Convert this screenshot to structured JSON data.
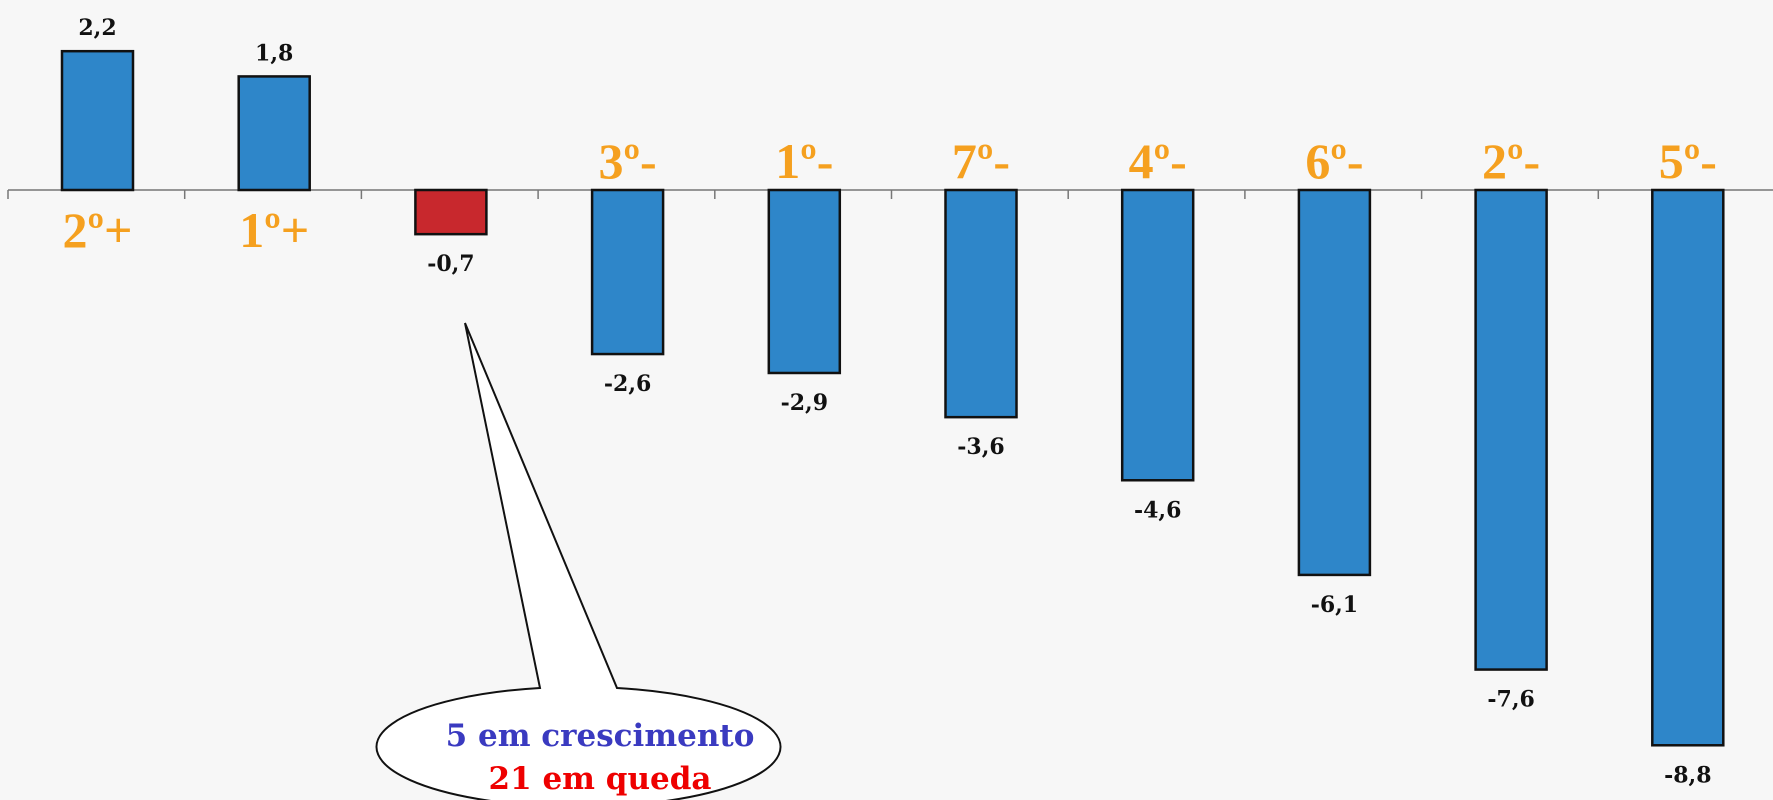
{
  "chart_data": {
    "type": "bar",
    "categories": [
      "2º+",
      "1º+",
      "",
      "3º-",
      "1º-",
      "7º-",
      "4º-",
      "6º-",
      "2º-",
      "5º-"
    ],
    "values": [
      2.2,
      1.8,
      -0.7,
      -2.6,
      -2.9,
      -3.6,
      -4.6,
      -6.1,
      -7.6,
      -8.8
    ],
    "value_labels": [
      "2,2",
      "1,8",
      "-0,7",
      "-2,6",
      "-2,9",
      "-3,6",
      "-4,6",
      "-6,1",
      "-7,6",
      "-8,8"
    ],
    "highlight_index": 2,
    "title": "",
    "xlabel": "",
    "ylabel": "",
    "ylim": [
      -9.5,
      3
    ],
    "grid": false,
    "colors": {
      "bar": "#2e86c9",
      "highlight_bar": "#c8282d",
      "bar_border": "#111111",
      "rank_label": "#f5a01f",
      "axis": "#777777"
    }
  },
  "callout": {
    "line1": "5 em crescimento",
    "line2": "21 em queda",
    "line1_color": "#3a3ac0",
    "line2_color": "#ee0000"
  }
}
